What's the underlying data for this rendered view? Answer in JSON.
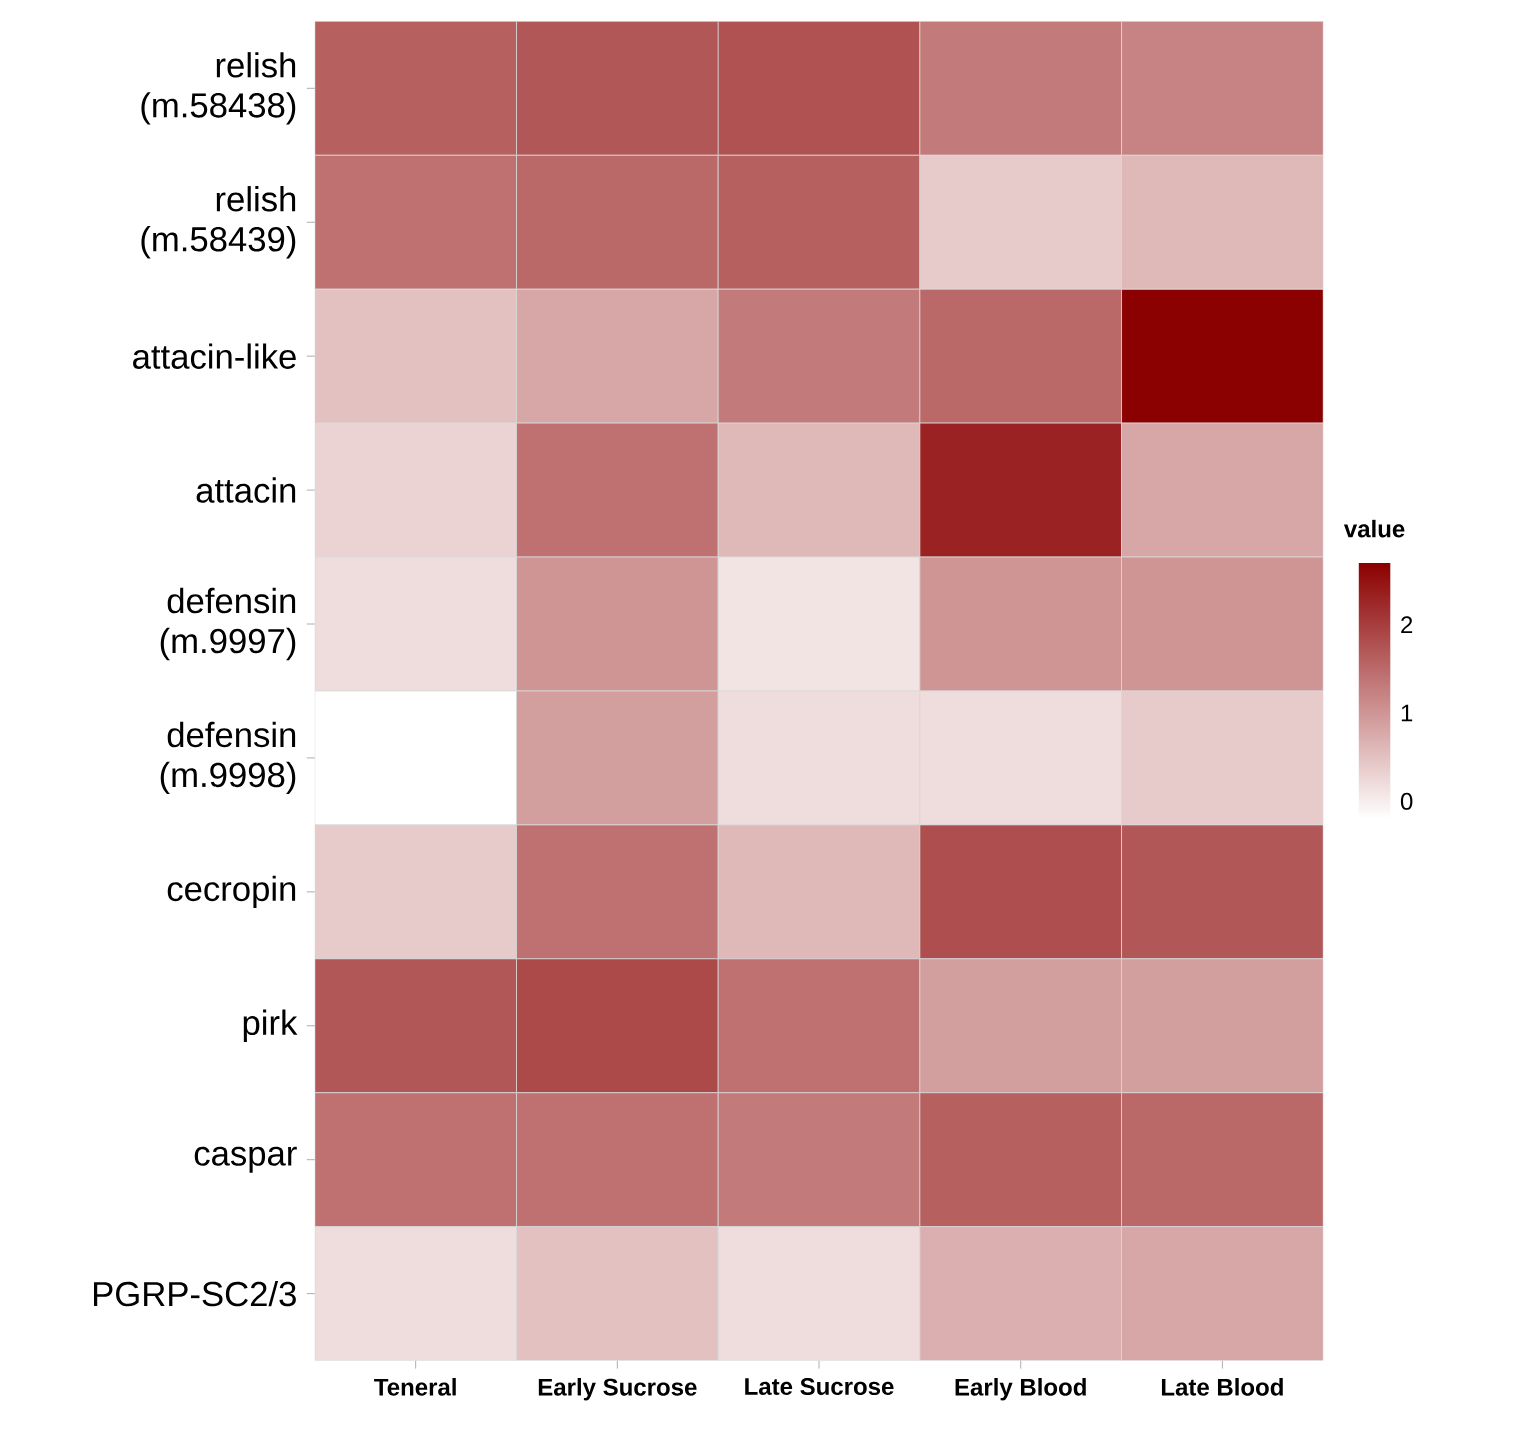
{
  "chart_data": {
    "type": "heatmap",
    "categories": [
      "Teneral",
      "Early Sucrose",
      "Late Sucrose",
      "Early Blood",
      "Late Blood"
    ],
    "y_categories": [
      "relish (m.58438)",
      "relish (m.58439)",
      "attacin-like",
      "attacin",
      "defensin (m.9997)",
      "defensin (m.9998)",
      "cecropin",
      "pirk",
      "caspar",
      "PGRP-SC2/3"
    ],
    "cells": [
      [
        1.6,
        1.7,
        1.75,
        1.3,
        1.2
      ],
      [
        1.4,
        1.5,
        1.6,
        0.4,
        0.6
      ],
      [
        0.5,
        0.8,
        1.3,
        1.5,
        2.7
      ],
      [
        0.3,
        1.4,
        0.6,
        2.3,
        0.8
      ],
      [
        0.2,
        1.0,
        0.1,
        1.0,
        1.0
      ],
      [
        -0.2,
        0.9,
        0.2,
        0.2,
        0.4
      ],
      [
        0.4,
        1.4,
        0.6,
        1.8,
        1.7
      ],
      [
        1.7,
        1.85,
        1.4,
        0.9,
        0.9
      ],
      [
        1.4,
        1.4,
        1.3,
        1.6,
        1.5
      ],
      [
        0.2,
        0.5,
        0.2,
        0.7,
        0.8
      ]
    ],
    "clabel": "value",
    "clim": [
      -0.2,
      2.7
    ],
    "cticks": [
      0,
      1,
      2
    ]
  }
}
